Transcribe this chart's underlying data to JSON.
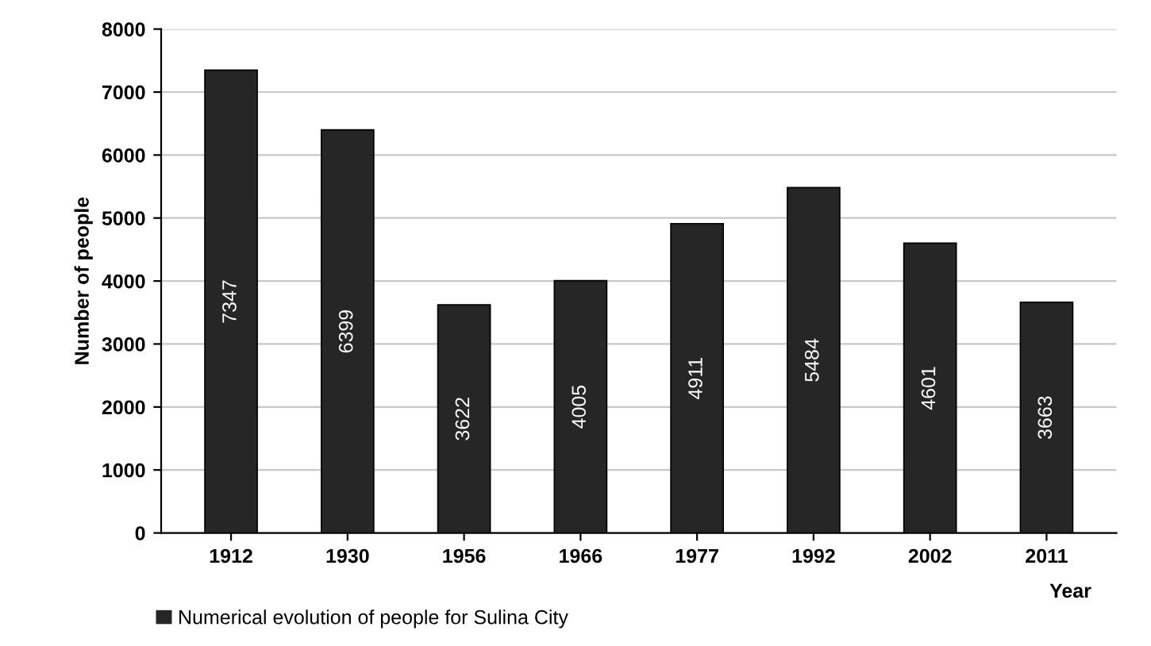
{
  "chart_data": {
    "type": "bar",
    "xlabel": "Year",
    "ylabel": "Number of people",
    "categories": [
      "1912",
      "1930",
      "1956",
      "1966",
      "1977",
      "1992",
      "2002",
      "2011"
    ],
    "series": [
      {
        "name": "Numerical evolution of people for Sulina City",
        "color": "#262626",
        "values": [
          7347,
          6399,
          3622,
          4005,
          4911,
          5484,
          4601,
          3663
        ]
      }
    ],
    "ylim": [
      0,
      8000
    ],
    "yticks": [
      0,
      1000,
      2000,
      3000,
      4000,
      5000,
      6000,
      7000,
      8000
    ],
    "grid": "y",
    "legend": "bottom left",
    "data_labels": true
  }
}
